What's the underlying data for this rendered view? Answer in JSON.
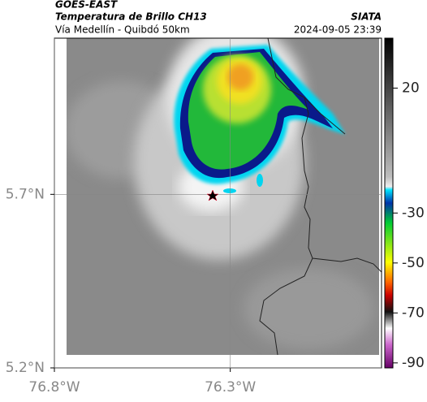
{
  "header": {
    "title": "GOES-EAST",
    "subtitle": "Temperatura de Brillo CH13",
    "route": "Vía Medellín - Quibdó 50km",
    "source": "SIATA",
    "datetime": "2024-09-05 23:39"
  },
  "map": {
    "xlim": [
      -76.8,
      -75.87
    ],
    "ylim": [
      5.2,
      6.15
    ],
    "xticks": [
      {
        "value": -76.8,
        "label": "76.8°W"
      },
      {
        "value": -76.3,
        "label": "76.3°W"
      }
    ],
    "yticks": [
      {
        "value": 5.7,
        "label": "5.7°N"
      },
      {
        "value": 5.2,
        "label": "5.2°N"
      }
    ]
  },
  "colorbar": {
    "lim": [
      -92,
      40
    ],
    "ticks": [
      20,
      -30,
      -50,
      -70,
      -90
    ]
  }
}
